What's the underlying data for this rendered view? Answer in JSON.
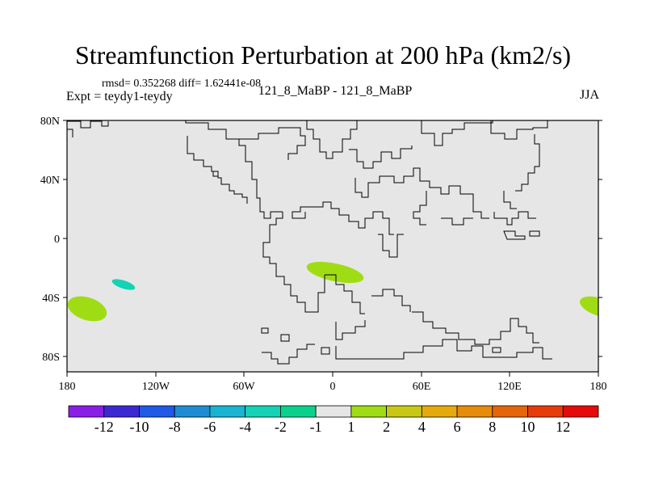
{
  "title": "Streamfunction Perturbation at 200 hPa (km2/s)",
  "stats": "rmsd= 0.352268  diff= 1.62441e-08",
  "experiment": "Expt = teydy1-teydy",
  "center_label": "121_8_MaBP - 121_8_MaBP",
  "season": "JJA",
  "colors": {
    "ocean_background": "#e6e6e6",
    "coastline": "#000000"
  },
  "lat_labels": [
    "80N",
    "40N",
    "0",
    "40S",
    "80S"
  ],
  "lon_labels": [
    "180",
    "120W",
    "60W",
    "0",
    "60E",
    "120E",
    "180"
  ],
  "colorbar": {
    "colors": [
      "#8a1ee6",
      "#3c28d2",
      "#1e5ae6",
      "#1e8cd2",
      "#19b4d2",
      "#14d2b4",
      "#0ad28c",
      "#e6e6e6",
      "#a0dc14",
      "#c8c814",
      "#e6aa0a",
      "#e68c0a",
      "#e6640a",
      "#e63c0a",
      "#e60a0a"
    ],
    "labels": [
      "-12",
      "-10",
      "-8",
      "-6",
      "-4",
      "-2",
      "-1",
      "1",
      "2",
      "4",
      "6",
      "8",
      "10",
      "12"
    ]
  },
  "anomalies": [
    {
      "name": "south-pacific-positive",
      "color": "#a0dc14",
      "lon": -165,
      "lat": -48
    },
    {
      "name": "south-pacific-negative",
      "color": "#14d2b4",
      "lon": -145,
      "lat": -31
    },
    {
      "name": "south-atlantic-africa-positive",
      "color": "#a0dc14",
      "lon": 3,
      "lat": -24
    },
    {
      "name": "dateline-positive",
      "color": "#a0dc14",
      "lon": 180,
      "lat": -46
    }
  ]
}
